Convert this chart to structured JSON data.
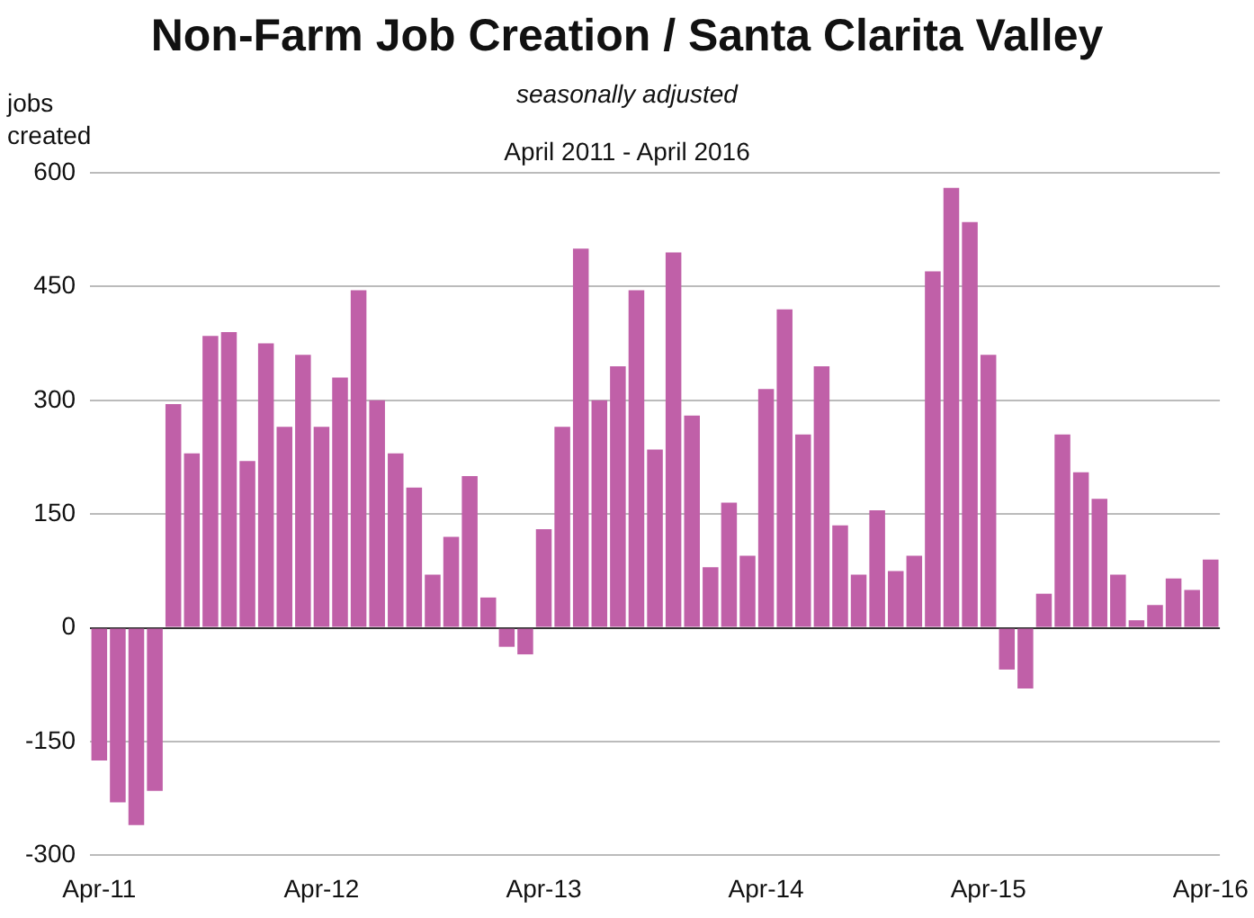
{
  "chart_data": {
    "type": "bar",
    "title": "Non-Farm Job Creation / Santa Clarita Valley",
    "subtitle": "seasonally adjusted",
    "annotations": [
      "April 2011 - April 2016"
    ],
    "ylabel": "jobs created",
    "categories": [
      "Apr-11",
      null,
      null,
      null,
      null,
      null,
      null,
      null,
      null,
      null,
      null,
      null,
      "Apr-12",
      null,
      null,
      null,
      null,
      null,
      null,
      null,
      null,
      null,
      null,
      null,
      "Apr-13",
      null,
      null,
      null,
      null,
      null,
      null,
      null,
      null,
      null,
      null,
      null,
      "Apr-14",
      null,
      null,
      null,
      null,
      null,
      null,
      null,
      null,
      null,
      null,
      null,
      "Apr-15",
      null,
      null,
      null,
      null,
      null,
      null,
      null,
      null,
      null,
      null,
      null,
      "Apr-16"
    ],
    "values": [
      -175,
      -230,
      -260,
      -215,
      295,
      230,
      385,
      390,
      220,
      375,
      265,
      360,
      265,
      330,
      445,
      300,
      230,
      185,
      70,
      120,
      200,
      40,
      -25,
      -35,
      130,
      265,
      500,
      300,
      345,
      445,
      235,
      495,
      280,
      80,
      165,
      95,
      315,
      420,
      255,
      345,
      135,
      70,
      155,
      75,
      95,
      470,
      580,
      535,
      360,
      -55,
      -80,
      45,
      255,
      205,
      170,
      70,
      10,
      30,
      65,
      50,
      90
    ],
    "color": "#c060a8",
    "ylim": [
      -300,
      600
    ],
    "yticks": [
      -300,
      -150,
      0,
      150,
      300,
      450,
      600
    ],
    "grid": "y"
  }
}
